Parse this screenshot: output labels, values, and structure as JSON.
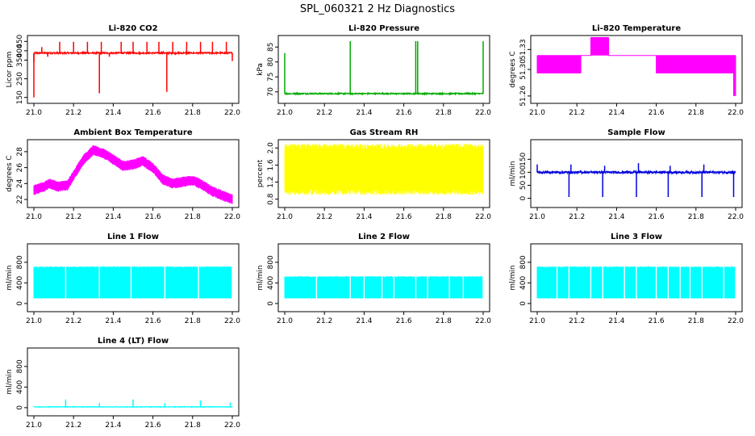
{
  "title": "SPL_060321  2 Hz Diagnostics",
  "chart_data": [
    {
      "type": "line",
      "title": "Li-820 CO2",
      "ylabel": "Licor ppm",
      "color": "#FF0000",
      "xlim": [
        21.0,
        22.0
      ],
      "ylim": [
        140,
        460
      ],
      "xticks": [
        21.0,
        21.2,
        21.4,
        21.6,
        21.8,
        22.0
      ],
      "xtick_labels": [
        "21.0",
        "21.2",
        "21.4",
        "21.6",
        "21.8",
        "22.0"
      ],
      "yticks": [
        150,
        250,
        350,
        400,
        450
      ],
      "ytick_labels": [
        "150",
        "250",
        "350",
        "400",
        "450"
      ],
      "gen": {
        "mode": "baseline",
        "base": 388,
        "noise": 4,
        "spikes": [
          {
            "x": 21.0,
            "y": 150
          },
          {
            "x": 21.0,
            "y": 340
          },
          {
            "x": 21.04,
            "y": 420
          },
          {
            "x": 21.07,
            "y": 368
          },
          {
            "x": 21.13,
            "y": 448
          },
          {
            "x": 21.2,
            "y": 448
          },
          {
            "x": 21.27,
            "y": 448
          },
          {
            "x": 21.33,
            "y": 172
          },
          {
            "x": 21.34,
            "y": 448
          },
          {
            "x": 21.38,
            "y": 368
          },
          {
            "x": 21.44,
            "y": 448
          },
          {
            "x": 21.5,
            "y": 448
          },
          {
            "x": 21.57,
            "y": 448
          },
          {
            "x": 21.63,
            "y": 448
          },
          {
            "x": 21.67,
            "y": 180
          },
          {
            "x": 21.7,
            "y": 448
          },
          {
            "x": 21.77,
            "y": 448
          },
          {
            "x": 21.84,
            "y": 448
          },
          {
            "x": 21.9,
            "y": 448
          },
          {
            "x": 21.97,
            "y": 448
          },
          {
            "x": 22.0,
            "y": 345
          }
        ]
      }
    },
    {
      "type": "line",
      "title": "Li-820 Pressure",
      "ylabel": "kPa",
      "color": "#00AA00",
      "xlim": [
        21.0,
        22.0
      ],
      "ylim": [
        67.5,
        87.5
      ],
      "xticks": [
        21.0,
        21.2,
        21.4,
        21.6,
        21.8,
        22.0
      ],
      "xtick_labels": [
        "21.0",
        "21.2",
        "21.4",
        "21.6",
        "21.8",
        "22.0"
      ],
      "yticks": [
        70,
        75,
        80,
        85
      ],
      "ytick_labels": [
        "70",
        "75",
        "80",
        "85"
      ],
      "gen": {
        "mode": "baseline",
        "base": 69.4,
        "noise": 0.2,
        "spikes": [
          {
            "x": 21.0,
            "y": 83
          },
          {
            "x": 21.33,
            "y": 87
          },
          {
            "x": 21.66,
            "y": 87
          },
          {
            "x": 21.67,
            "y": 87
          },
          {
            "x": 22.0,
            "y": 87
          }
        ]
      }
    },
    {
      "type": "line",
      "title": "Li-820 Temperature",
      "ylabel": "degrees C",
      "color": "#FF00FF",
      "xlim": [
        21.0,
        22.0
      ],
      "ylim": [
        51.255,
        51.345
      ],
      "xticks": [
        21.0,
        21.2,
        21.4,
        21.6,
        21.8,
        22.0
      ],
      "xtick_labels": [
        "21.0",
        "21.2",
        "21.4",
        "21.6",
        "21.8",
        "22.0"
      ],
      "yticks": [
        51.26,
        51.3,
        51.33
      ],
      "ytick_labels": [
        "51.26",
        "51.30",
        "51.33"
      ],
      "gen": {
        "mode": "steps",
        "segments": [
          {
            "x0": 21.0,
            "x1": 21.22,
            "lo": 51.294,
            "hi": 51.321
          },
          {
            "x0": 21.22,
            "x1": 21.27,
            "lo": 51.321,
            "hi": 51.321
          },
          {
            "x0": 21.27,
            "x1": 21.36,
            "lo": 51.321,
            "hi": 51.348
          },
          {
            "x0": 21.36,
            "x1": 21.6,
            "lo": 51.321,
            "hi": 51.321
          },
          {
            "x0": 21.6,
            "x1": 21.99,
            "lo": 51.294,
            "hi": 51.321
          },
          {
            "x0": 21.99,
            "x1": 22.0,
            "lo": 51.26,
            "hi": 51.321
          }
        ]
      }
    },
    {
      "type": "line",
      "title": "Ambient Box Temperature",
      "ylabel": "degrees C",
      "color": "#FF00FF",
      "xlim": [
        21.0,
        22.0
      ],
      "ylim": [
        21.5,
        29.0
      ],
      "xticks": [
        21.0,
        21.2,
        21.4,
        21.6,
        21.8,
        22.0
      ],
      "xtick_labels": [
        "21.0",
        "21.2",
        "21.4",
        "21.6",
        "21.8",
        "22.0"
      ],
      "yticks": [
        22,
        24,
        26,
        28
      ],
      "ytick_labels": [
        "22",
        "24",
        "26",
        "28"
      ],
      "gen": {
        "mode": "curve",
        "width": 0.8,
        "points": [
          [
            21.0,
            23.2
          ],
          [
            21.05,
            23.6
          ],
          [
            21.08,
            24.0
          ],
          [
            21.12,
            23.6
          ],
          [
            21.17,
            23.8
          ],
          [
            21.2,
            25.0
          ],
          [
            21.25,
            27.0
          ],
          [
            21.3,
            28.2
          ],
          [
            21.35,
            27.8
          ],
          [
            21.4,
            27.0
          ],
          [
            21.45,
            26.2
          ],
          [
            21.5,
            26.4
          ],
          [
            21.55,
            26.8
          ],
          [
            21.6,
            26.0
          ],
          [
            21.65,
            24.5
          ],
          [
            21.7,
            24.0
          ],
          [
            21.75,
            24.2
          ],
          [
            21.8,
            24.4
          ],
          [
            21.85,
            23.8
          ],
          [
            21.9,
            23.0
          ],
          [
            21.95,
            22.5
          ],
          [
            22.0,
            22.0
          ]
        ]
      }
    },
    {
      "type": "line",
      "title": "Gas Stream RH",
      "ylabel": "percent",
      "color": "#FFFF00",
      "xlim": [
        21.0,
        22.0
      ],
      "ylim": [
        0.7,
        2.1
      ],
      "xticks": [
        21.0,
        21.2,
        21.4,
        21.6,
        21.8,
        22.0
      ],
      "xtick_labels": [
        "21.0",
        "21.2",
        "21.4",
        "21.6",
        "21.8",
        "22.0"
      ],
      "yticks": [
        0.8,
        1.2,
        1.6,
        2.0
      ],
      "ytick_labels": [
        "0.8",
        "1.2",
        "1.6",
        "2.0"
      ],
      "gen": {
        "mode": "band",
        "lo": 1.05,
        "hi": 1.95,
        "jitter": 0.15
      }
    },
    {
      "type": "line",
      "title": "Sample Flow",
      "ylabel": "ml/min",
      "color": "#0000DD",
      "xlim": [
        21.0,
        22.0
      ],
      "ylim": [
        -20,
        210
      ],
      "xticks": [
        21.0,
        21.2,
        21.4,
        21.6,
        21.8,
        22.0
      ],
      "xtick_labels": [
        "21.0",
        "21.2",
        "21.4",
        "21.6",
        "21.8",
        "22.0"
      ],
      "yticks": [
        0,
        50,
        100,
        150
      ],
      "ytick_labels": [
        "0",
        "50",
        "100",
        "150"
      ],
      "gen": {
        "mode": "baseline",
        "base": 100,
        "noise": 4,
        "spikes": [
          {
            "x": 21.0,
            "y": 130
          },
          {
            "x": 21.16,
            "y": 5
          },
          {
            "x": 21.17,
            "y": 130
          },
          {
            "x": 21.33,
            "y": 5
          },
          {
            "x": 21.34,
            "y": 125
          },
          {
            "x": 21.5,
            "y": 5
          },
          {
            "x": 21.51,
            "y": 135
          },
          {
            "x": 21.66,
            "y": 5
          },
          {
            "x": 21.67,
            "y": 125
          },
          {
            "x": 21.83,
            "y": 5
          },
          {
            "x": 21.84,
            "y": 130
          },
          {
            "x": 21.99,
            "y": 5
          }
        ]
      }
    },
    {
      "type": "line",
      "title": "Line 1 Flow",
      "ylabel": "ml/min",
      "color": "#00FFFF",
      "xlim": [
        21.0,
        22.0
      ],
      "ylim": [
        -80,
        1080
      ],
      "xticks": [
        21.0,
        21.2,
        21.4,
        21.6,
        21.8,
        22.0
      ],
      "xtick_labels": [
        "21.0",
        "21.2",
        "21.4",
        "21.6",
        "21.8",
        "22.0"
      ],
      "yticks": [
        0,
        400,
        800
      ],
      "ytick_labels": [
        "0",
        "400",
        "800"
      ],
      "gen": {
        "mode": "block",
        "lo": 100,
        "hi": 720,
        "gaps": [
          21.16,
          21.33,
          21.49,
          21.66,
          21.83
        ]
      }
    },
    {
      "type": "line",
      "title": "Line 2 Flow",
      "ylabel": "ml/min",
      "color": "#00FFFF",
      "xlim": [
        21.0,
        22.0
      ],
      "ylim": [
        -80,
        1080
      ],
      "xticks": [
        21.0,
        21.2,
        21.4,
        21.6,
        21.8,
        22.0
      ],
      "xtick_labels": [
        "21.0",
        "21.2",
        "21.4",
        "21.6",
        "21.8",
        "22.0"
      ],
      "yticks": [
        0,
        400,
        800
      ],
      "ytick_labels": [
        "0",
        "400",
        "800"
      ],
      "gen": {
        "mode": "block",
        "lo": 100,
        "hi": 530,
        "gaps": [
          21.16,
          21.33,
          21.4,
          21.49,
          21.55,
          21.66,
          21.72,
          21.83,
          21.9
        ]
      }
    },
    {
      "type": "line",
      "title": "Line 3 Flow",
      "ylabel": "ml/min",
      "color": "#00FFFF",
      "xlim": [
        21.0,
        22.0
      ],
      "ylim": [
        -80,
        1080
      ],
      "xticks": [
        21.0,
        21.2,
        21.4,
        21.6,
        21.8,
        22.0
      ],
      "xtick_labels": [
        "21.0",
        "21.2",
        "21.4",
        "21.6",
        "21.8",
        "22.0"
      ],
      "yticks": [
        0,
        400,
        800
      ],
      "ytick_labels": [
        "0",
        "400",
        "800"
      ],
      "gen": {
        "mode": "block",
        "lo": 100,
        "hi": 720,
        "gaps": [
          21.1,
          21.16,
          21.27,
          21.33,
          21.44,
          21.5,
          21.6,
          21.66,
          21.72,
          21.77,
          21.83,
          21.94
        ]
      }
    },
    {
      "type": "line",
      "title": "Line 4 (LT) Flow",
      "ylabel": "ml/min",
      "color": "#00FFFF",
      "xlim": [
        21.0,
        22.0
      ],
      "ylim": [
        -80,
        1080
      ],
      "xticks": [
        21.0,
        21.2,
        21.4,
        21.6,
        21.8,
        22.0
      ],
      "xtick_labels": [
        "21.0",
        "21.2",
        "21.4",
        "21.6",
        "21.8",
        "22.0"
      ],
      "yticks": [
        0,
        400,
        800
      ],
      "ytick_labels": [
        "0",
        "400",
        "800"
      ],
      "gen": {
        "mode": "baseline",
        "base": 15,
        "noise": 5,
        "spikes": [
          {
            "x": 21.16,
            "y": 160
          },
          {
            "x": 21.33,
            "y": 90
          },
          {
            "x": 21.5,
            "y": 160
          },
          {
            "x": 21.66,
            "y": 90
          },
          {
            "x": 21.84,
            "y": 140
          },
          {
            "x": 21.99,
            "y": 100
          }
        ]
      }
    }
  ]
}
